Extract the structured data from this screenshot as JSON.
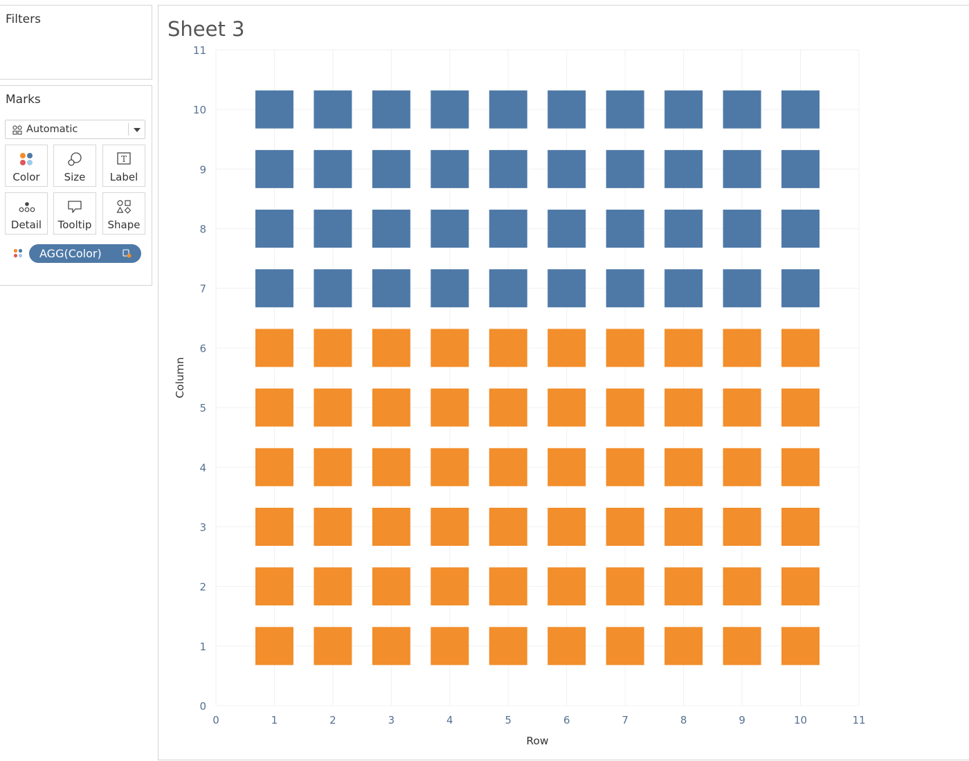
{
  "filters_pane": {
    "title": "Filters"
  },
  "marks_pane": {
    "title": "Marks",
    "mark_type": {
      "label": "Automatic",
      "icon": "automatic-shapes-icon"
    },
    "buttons": [
      {
        "label": "Color",
        "icon": "color-dots-icon"
      },
      {
        "label": "Size",
        "icon": "size-circles-icon"
      },
      {
        "label": "Label",
        "icon": "label-text-icon"
      },
      {
        "label": "Detail",
        "icon": "detail-dots-icon"
      },
      {
        "label": "Tooltip",
        "icon": "tooltip-bubble-icon"
      },
      {
        "label": "Shape",
        "icon": "shape-glyphs-icon"
      }
    ],
    "pill": {
      "label": "AGG(Color)",
      "color": "#4e79a7",
      "icon": "calculation-icon"
    }
  },
  "sheet": {
    "title": "Sheet 3"
  },
  "chart_data": {
    "type": "scatter",
    "mark_shape": "square",
    "xlabel": "Row",
    "ylabel": "Column",
    "xlim": [
      0,
      11
    ],
    "ylim": [
      0,
      11
    ],
    "x_ticks": [
      "0",
      "1",
      "2",
      "3",
      "4",
      "5",
      "6",
      "7",
      "8",
      "9",
      "10",
      "11"
    ],
    "y_ticks": [
      "0",
      "1",
      "2",
      "3",
      "4",
      "5",
      "6",
      "7",
      "8",
      "9",
      "10",
      "11"
    ],
    "grid": true,
    "x": [
      1,
      2,
      3,
      4,
      5,
      6,
      7,
      8,
      9,
      10
    ],
    "series": [
      {
        "color": "#f28e2b",
        "y": [
          1,
          2,
          3,
          4,
          5,
          6
        ]
      },
      {
        "color": "#4e79a7",
        "y": [
          7,
          8,
          9,
          10
        ]
      }
    ]
  }
}
